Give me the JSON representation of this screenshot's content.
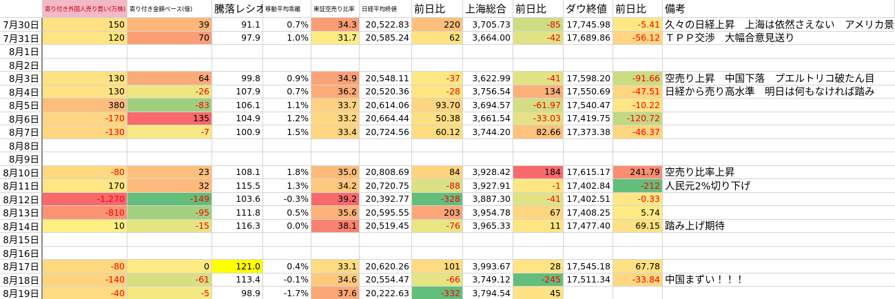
{
  "table": {
    "header": [
      null,
      "寄り付き外国人売り買い(万株)",
      "寄り付き金額ベース(億)",
      "騰落レシオ",
      "移動平均乖離",
      "東証空売り比率",
      "日経平均終値",
      "前日比",
      "上海総合",
      "前日比",
      "ダウ終値",
      "前日比",
      "備考"
    ],
    "rows": [
      {
        "cells": [
          "7月30日",
          "150",
          "39",
          "91.1",
          "0.7%",
          "34.3",
          "20,522.83",
          "220",
          "3,705.73",
          "-85",
          "17,745.98",
          "-5.41",
          "久々の日経上昇　上海は依然さえない　アメリカ景気回復の流"
        ],
        "fills": [
          null,
          "#ffe083",
          "#fdb57a",
          null,
          null,
          "#fa9d75",
          null,
          "#fdc07c",
          null,
          "#cddd82",
          null,
          "#ffe884",
          null
        ]
      },
      {
        "cells": [
          "7月31日",
          "120",
          "70",
          "97.9",
          "1.0%",
          "31.7",
          "20,585.24",
          "62",
          "3,664.00",
          "-42",
          "17,689.86",
          "-56.12",
          "ＴＰＰ交渉　大幅合意見送り"
        ],
        "fills": [
          null,
          "#ffe483",
          "#fb9e75",
          null,
          null,
          "#ffeb84",
          null,
          "#fee383",
          null,
          "#e0e283",
          null,
          "#fed580",
          null
        ]
      },
      {
        "cells": [
          "8月1日",
          null,
          null,
          null,
          null,
          null,
          null,
          null,
          null,
          null,
          null,
          null,
          null
        ]
      },
      {
        "cells": [
          "8月2日",
          null,
          null,
          null,
          null,
          null,
          null,
          null,
          null,
          null,
          null,
          null,
          null
        ]
      },
      {
        "cells": [
          "8月3日",
          "130",
          "64",
          "99.8",
          "0.9%",
          "34.9",
          "20,548.11",
          "-37",
          "3,622.99",
          "-41",
          "17,598.20",
          "-91.66",
          "空売り上昇　中国下落　プエルトリコ破たん目"
        ],
        "fills": [
          null,
          "#ffe283",
          "#fcab78",
          null,
          null,
          "#fba276",
          null,
          "#fee883",
          null,
          "#e0e283",
          null,
          "#c9dc81",
          null
        ]
      },
      {
        "cells": [
          "8月4日",
          "130",
          "-26",
          "107.9",
          "0.7%",
          "36.2",
          "20,520.36",
          "-28",
          "3,756.54",
          "134",
          "17,550.69",
          "-47.51",
          "日経から売り高水準　明日は何もなければ踏み"
        ],
        "fills": [
          null,
          "#ffe283",
          "#eee683",
          null,
          null,
          "#fbab78",
          null,
          "#fee683",
          null,
          "#fcb079",
          null,
          "#fed580",
          null
        ]
      },
      {
        "cells": [
          "8月5日",
          "380",
          "-83",
          "106.1",
          "1.1%",
          "33.7",
          "20,614.06",
          "93.70",
          "3,694.57",
          "-61.97",
          "17,540.47",
          "-10.22",
          null
        ],
        "fills": [
          null,
          "#fdbd7b",
          "#9fcf7f",
          null,
          null,
          "#fed180",
          null,
          "#fed680",
          null,
          "#d3de82",
          null,
          "#ffe684",
          null
        ]
      },
      {
        "cells": [
          "8月6日",
          "-170",
          "135",
          "104.9",
          "1.2%",
          "33.2",
          "20,664.44",
          "50.38",
          "3,661.54",
          "-33.03",
          "17,419.75",
          "-120.72",
          null
        ],
        "fills": [
          null,
          "#fed580",
          "#f8696b",
          null,
          null,
          "#fed781",
          null,
          "#fee081",
          null,
          "#e3e383",
          null,
          "#c1da81",
          null
        ]
      },
      {
        "cells": [
          "8月7日",
          "-130",
          "-7",
          "100.9",
          "1.5%",
          "33.4",
          "20,724.56",
          "60.12",
          "3,744.20",
          "82.66",
          "17,373.38",
          "-46.37",
          null
        ],
        "fills": [
          null,
          "#fed780",
          "#f6e883",
          null,
          null,
          "#fed580",
          null,
          "#fedd81",
          null,
          "#fdc27c",
          null,
          "#fed680",
          null
        ]
      },
      {
        "cells": [
          "8月8日",
          null,
          null,
          null,
          null,
          null,
          null,
          null,
          null,
          null,
          null,
          null,
          null
        ]
      },
      {
        "cells": [
          "8月9日",
          null,
          null,
          null,
          null,
          null,
          null,
          null,
          null,
          null,
          null,
          null,
          null
        ]
      },
      {
        "cells": [
          "8月10日",
          "-80",
          "23",
          "108.1",
          "1.8%",
          "35.0",
          "20,808.69",
          "84",
          "3,928.42",
          "184",
          "17,615.17",
          "241.79",
          "空売り比率上昇"
        ],
        "fills": [
          null,
          "#fed980",
          "#fdc07c",
          null,
          null,
          "#fcbb7a",
          null,
          "#fdd37f",
          null,
          "#f8696b",
          null,
          "#fa8d72",
          null
        ]
      },
      {
        "cells": [
          "8月11日",
          "170",
          "32",
          "115.5",
          "1.3%",
          "34.2",
          "20,720.75",
          "-88",
          "3,927.91",
          "-1",
          "17,402.84",
          "-212",
          "人民元2%切り下げ"
        ],
        "fills": [
          null,
          "#ffe784",
          "#fdba7b",
          null,
          null,
          "#fdc97d",
          null,
          "#dbe082",
          null,
          "#fee683",
          null,
          "#63be7b",
          null
        ]
      },
      {
        "cells": [
          "8月12日",
          "-1,270",
          "-149",
          "103.6",
          "-0.3%",
          "39.2",
          "20,392.77",
          "-328",
          "3,887.30",
          "-41",
          "17,402.51",
          "-0.33",
          null
        ],
        "fills": [
          null,
          "#f8696b",
          "#63be7b",
          null,
          null,
          "#f8696b",
          null,
          "#63be7b",
          null,
          "#e0e283",
          null,
          "#ffe884",
          null
        ]
      },
      {
        "cells": [
          "8月13日",
          "-810",
          "-95",
          "111.8",
          "0.5%",
          "35.6",
          "20,595.55",
          "203",
          "3,954.78",
          "67",
          "17,408.25",
          "5.74",
          null
        ],
        "fills": [
          null,
          "#fa9473",
          "#a3d07f",
          null,
          null,
          "#fcb279",
          null,
          "#fca577",
          null,
          "#fed680",
          null,
          "#ffeb84",
          null
        ]
      },
      {
        "cells": [
          "8月14日",
          "10",
          "-15",
          "116.3",
          "0.0%",
          "38.1",
          "20,519.45",
          "-76",
          "3,965.33",
          "11",
          "17,477.40",
          "69.15",
          "踏み上げ期待"
        ],
        "fills": [
          null,
          "#feee83",
          "#e4e483",
          null,
          null,
          "#f98370",
          null,
          "#e8e583",
          null,
          "#fee583",
          null,
          "#fee182",
          null
        ]
      },
      {
        "cells": [
          "8月15日",
          null,
          null,
          null,
          null,
          null,
          null,
          null,
          null,
          null,
          null,
          null,
          null
        ]
      },
      {
        "cells": [
          "8月16日",
          null,
          null,
          null,
          null,
          null,
          null,
          null,
          null,
          null,
          null,
          null,
          null
        ]
      },
      {
        "cells": [
          "8月17日",
          "-80",
          "0",
          "121.0",
          "0.4%",
          "33.1",
          "20,620.26",
          "101",
          "3,993.67",
          "28",
          "17,545.18",
          "67.78",
          null
        ],
        "fills": [
          null,
          "#fed980",
          "#feeb84",
          "#ffff00",
          null,
          "#fedb81",
          null,
          "#fedb81",
          null,
          "#fee483",
          null,
          "#fee182",
          null
        ]
      },
      {
        "cells": [
          "8月18日",
          "-140",
          "-61",
          "113.4",
          "-0.1%",
          "34.6",
          "20,554.47",
          "-66",
          "3,749.12",
          "-245",
          "17,511.34",
          "-33.84",
          "中国まずい！！！"
        ],
        "fills": [
          null,
          "#fed47f",
          "#d7df82",
          null,
          null,
          "#fdc97d",
          null,
          "#e4e483",
          null,
          "#63be7b",
          null,
          "#fed880",
          null
        ]
      },
      {
        "cells": [
          "8月19日",
          "-40",
          "-5",
          "98.9",
          "-1.7%",
          "37.6",
          "20,222.63",
          "-332",
          "3,794.54",
          "45",
          null,
          null,
          null
        ],
        "fills": [
          null,
          "#fedb81",
          "#f4e883",
          null,
          null,
          "#fba877",
          null,
          "#63be7b",
          null,
          "#fee283",
          null,
          null,
          null
        ]
      }
    ]
  }
}
